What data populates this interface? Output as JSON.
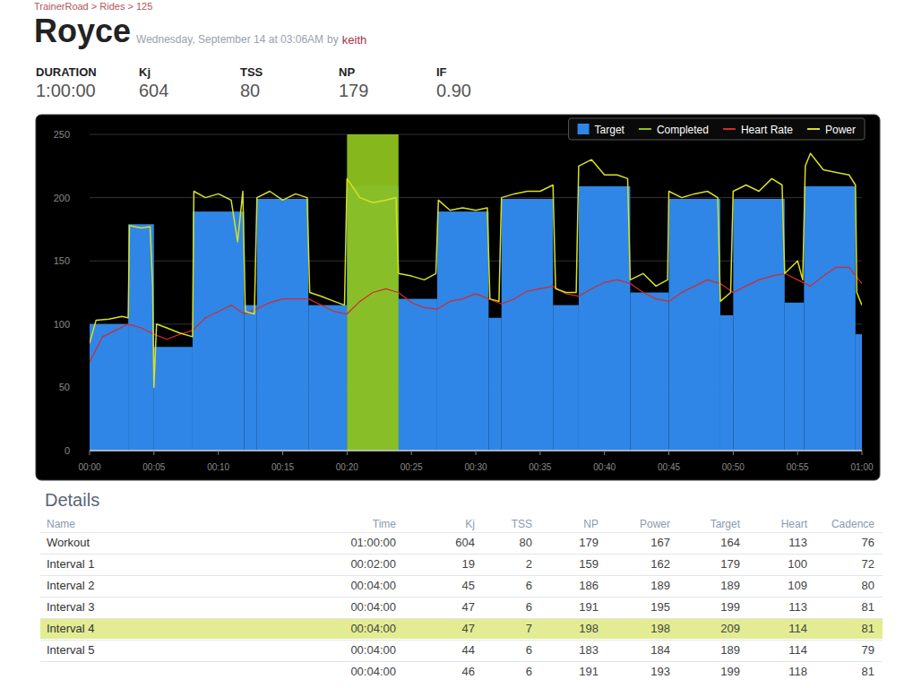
{
  "header": {
    "breadcrumb": "TrainerRoad > Rides > 125",
    "title": "Royce",
    "date": "Wednesday, September 14 at 03:06AM",
    "by": "by",
    "author": "keith"
  },
  "stats": [
    {
      "label": "DURATION",
      "value": "1:00:00"
    },
    {
      "label": "Kj",
      "value": 604
    },
    {
      "label": "TSS",
      "value": 80
    },
    {
      "label": "NP",
      "value": 179
    },
    {
      "label": "IF",
      "value": "0.90"
    }
  ],
  "chart_data": {
    "type": "line",
    "xlim": [
      0,
      60
    ],
    "xticks": [
      {
        "value": 0,
        "label": "00:00"
      },
      {
        "value": 5,
        "label": "00:05"
      },
      {
        "value": 10,
        "label": "00:10"
      },
      {
        "value": 15,
        "label": "00:15"
      },
      {
        "value": 20,
        "label": "00:20"
      },
      {
        "value": 25,
        "label": "00:25"
      },
      {
        "value": 30,
        "label": "00:30"
      },
      {
        "value": 35,
        "label": "00:35"
      },
      {
        "value": 40,
        "label": "00:40"
      },
      {
        "value": 45,
        "label": "00:45"
      },
      {
        "value": 50,
        "label": "00:50"
      },
      {
        "value": 55,
        "label": "00:55"
      },
      {
        "value": 60,
        "label": "01:00"
      }
    ],
    "ylim": [
      0,
      250
    ],
    "yticks": [
      0,
      50,
      100,
      150,
      200,
      250
    ],
    "grid": true,
    "legend": "top-right",
    "series": [
      {
        "name": "Target",
        "type": "step",
        "color": "#2f86e6",
        "bins": [
          0,
          3,
          5,
          8,
          12,
          13,
          17,
          20,
          24,
          27,
          31,
          32,
          36,
          38,
          42,
          45,
          49,
          50,
          54,
          55.5,
          59.5,
          60
        ],
        "values": [
          100,
          179,
          82,
          189,
          115,
          199,
          115,
          209,
          120,
          189,
          105,
          199,
          115,
          209,
          125,
          199,
          107,
          199,
          117,
          209,
          92
        ]
      },
      {
        "name": "Completed",
        "type": "band",
        "color": "#8dc21f",
        "bins": [
          20,
          24
        ],
        "values": [
          250
        ]
      },
      {
        "name": "Heart Rate",
        "type": "line",
        "color": "#d42a2a",
        "x": [
          0,
          1,
          2,
          3,
          4,
          5,
          6,
          7,
          8,
          9,
          10,
          11,
          12,
          13,
          14,
          15,
          16,
          17,
          18,
          19,
          20,
          21,
          22,
          23,
          24,
          25,
          26,
          27,
          28,
          29,
          30,
          31,
          32,
          33,
          34,
          35,
          36,
          37,
          38,
          39,
          40,
          41,
          42,
          43,
          44,
          45,
          46,
          47,
          48,
          49,
          50,
          51,
          52,
          53,
          54,
          55,
          56,
          57,
          58,
          59,
          60
        ],
        "values": [
          70,
          90,
          95,
          100,
          97,
          92,
          88,
          92,
          95,
          105,
          110,
          115,
          108,
          112,
          117,
          120,
          120,
          120,
          115,
          110,
          108,
          118,
          125,
          128,
          125,
          117,
          113,
          112,
          118,
          120,
          124,
          120,
          116,
          120,
          126,
          128,
          130,
          124,
          122,
          128,
          133,
          135,
          132,
          125,
          120,
          118,
          125,
          130,
          135,
          132,
          125,
          130,
          135,
          138,
          140,
          135,
          130,
          138,
          145,
          145,
          132
        ]
      },
      {
        "name": "Power",
        "type": "line",
        "color": "#d9e021",
        "x": [
          0,
          0.5,
          1.5,
          2.5,
          3,
          3.1,
          4,
          4.7,
          4.9,
          5,
          5.2,
          6,
          7,
          8,
          8.1,
          9,
          10,
          11,
          11.5,
          11.9,
          12.1,
          12.8,
          13,
          14,
          15,
          16,
          16.9,
          17.1,
          18,
          19,
          19.8,
          20,
          21,
          22,
          23,
          23.8,
          24,
          25,
          26,
          26.9,
          27.1,
          28,
          29,
          30,
          30.9,
          31.1,
          31.8,
          32,
          33,
          34,
          35,
          36,
          36.2,
          37,
          37.8,
          38,
          39,
          40,
          41,
          41.8,
          42,
          43,
          44,
          44.9,
          45,
          46,
          47,
          48,
          48.8,
          49,
          49.8,
          50,
          51,
          52,
          53,
          53.8,
          54,
          55,
          55.4,
          55.6,
          56,
          57,
          58,
          59,
          59.5,
          59.6,
          60
        ],
        "values": [
          85,
          103,
          104,
          106,
          105,
          178,
          176,
          177,
          130,
          50,
          100,
          97,
          93,
          90,
          205,
          200,
          203,
          198,
          165,
          205,
          110,
          108,
          200,
          205,
          198,
          203,
          200,
          125,
          122,
          118,
          115,
          215,
          200,
          196,
          198,
          200,
          140,
          138,
          135,
          140,
          198,
          190,
          192,
          190,
          192,
          120,
          118,
          200,
          203,
          205,
          205,
          210,
          128,
          125,
          125,
          225,
          230,
          218,
          218,
          215,
          135,
          140,
          130,
          135,
          205,
          200,
          203,
          205,
          200,
          118,
          125,
          205,
          210,
          205,
          215,
          210,
          140,
          150,
          135,
          225,
          235,
          222,
          220,
          218,
          210,
          125,
          115
        ]
      }
    ]
  },
  "details": {
    "title": "Details",
    "columns": [
      "Name",
      "Time",
      "Kj",
      "TSS",
      "NP",
      "Power",
      "Target",
      "Heart",
      "Cadence"
    ],
    "rows": [
      [
        "Workout",
        "01:00:00",
        604,
        80,
        179,
        167,
        164,
        113,
        76
      ],
      [
        "Interval 1",
        "00:02:00",
        19,
        2,
        159,
        162,
        179,
        100,
        72
      ],
      [
        "Interval 2",
        "00:04:00",
        45,
        6,
        186,
        189,
        189,
        109,
        80
      ],
      [
        "Interval 3",
        "00:04:00",
        47,
        6,
        191,
        195,
        199,
        113,
        81
      ],
      [
        "Interval 4",
        "00:04:00",
        47,
        7,
        198,
        198,
        209,
        114,
        81
      ],
      [
        "Interval 5",
        "00:04:00",
        44,
        6,
        183,
        184,
        189,
        114,
        79
      ],
      [
        null,
        "00:04:00",
        46,
        6,
        191,
        193,
        199,
        118,
        81
      ]
    ],
    "highlight": "Interval 4"
  }
}
